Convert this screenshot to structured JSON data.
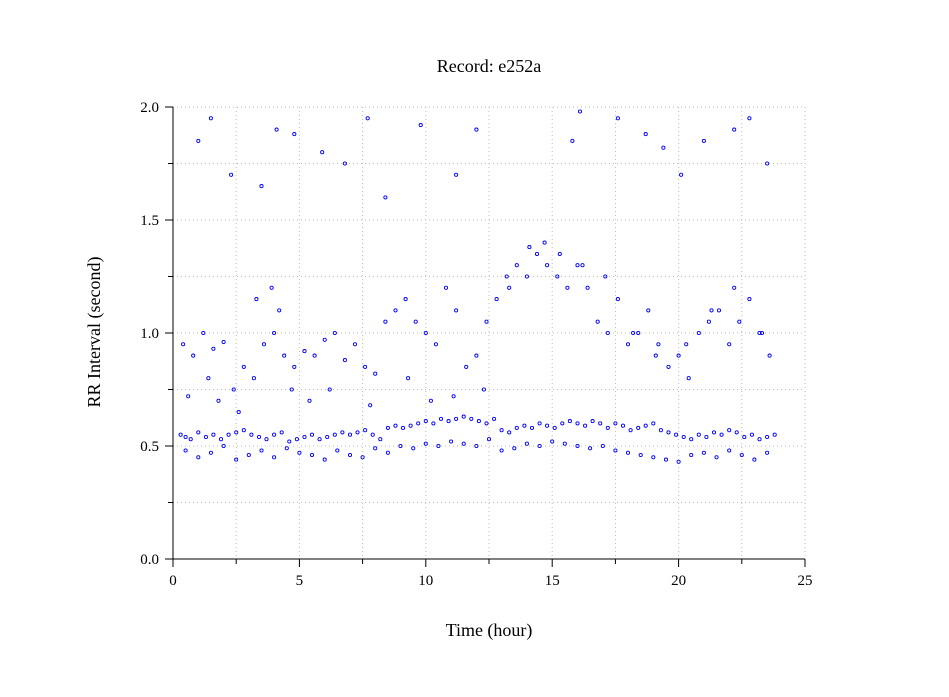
{
  "chart_data": {
    "type": "scatter",
    "title": "Record:  e252a",
    "xlabel": "Time (hour)",
    "ylabel": "RR Interval (second)",
    "xlim": [
      0,
      25
    ],
    "ylim": [
      0.0,
      2.0
    ],
    "x_ticks": [
      0,
      5,
      10,
      15,
      20,
      25
    ],
    "x_tick_labels": [
      "0",
      "5",
      "10",
      "15",
      "20",
      "25"
    ],
    "y_ticks": [
      0.0,
      0.5,
      1.0,
      1.5,
      2.0
    ],
    "y_tick_labels": [
      "0.0",
      "0.5",
      "1.0",
      "1.5",
      "2.0"
    ],
    "grid": true,
    "marker_color": "#0000ff",
    "series": [
      {
        "x": [
          0.3,
          0.5,
          0.7,
          1.0,
          1.3,
          1.6,
          1.9,
          2.2,
          2.5,
          2.8,
          3.1,
          3.4,
          3.7,
          4.0,
          4.3,
          4.6,
          4.9,
          5.2,
          5.5,
          5.8,
          6.1,
          6.4,
          6.7,
          7.0,
          7.3,
          7.6,
          7.9,
          8.2,
          8.5,
          8.8,
          9.1,
          9.4,
          9.7,
          10.0,
          10.3,
          10.6,
          10.9,
          11.2,
          11.5,
          11.8,
          12.1,
          12.4,
          12.7,
          13.0,
          13.3,
          13.6,
          13.9,
          14.2,
          14.5,
          14.8,
          15.1,
          15.4,
          15.7,
          16.0,
          16.3,
          16.6,
          16.9,
          17.2,
          17.5,
          17.8,
          18.1,
          18.4,
          18.7,
          19.0,
          19.3,
          19.6,
          19.9,
          20.2,
          20.5,
          20.8,
          21.1,
          21.4,
          21.7,
          22.0,
          22.3,
          22.6,
          22.9,
          23.2,
          23.5,
          23.8,
          0.4,
          0.8,
          1.2,
          1.6,
          2.0,
          2.4,
          2.8,
          3.2,
          3.6,
          4.0,
          4.4,
          4.8,
          5.2,
          5.6,
          6.0,
          6.4,
          6.8,
          7.2,
          7.6,
          8.0,
          8.4,
          8.8,
          9.2,
          9.6,
          10.0,
          10.4,
          10.8,
          11.2,
          11.6,
          12.0,
          12.4,
          12.8,
          13.2,
          13.6,
          14.0,
          14.4,
          14.8,
          15.2,
          15.6,
          16.0,
          16.4,
          16.8,
          17.2,
          17.6,
          18.0,
          18.4,
          18.8,
          19.2,
          19.6,
          20.0,
          20.4,
          20.8,
          21.2,
          21.6,
          22.0,
          22.4,
          22.8,
          23.2,
          23.6,
          0.5,
          1.0,
          1.5,
          2.0,
          2.5,
          3.0,
          3.5,
          4.0,
          4.5,
          5.0,
          5.5,
          6.0,
          6.5,
          7.0,
          7.5,
          8.0,
          8.5,
          9.0,
          9.5,
          10.0,
          10.5,
          11.0,
          11.5,
          12.0,
          12.5,
          13.0,
          13.5,
          14.0,
          14.5,
          15.0,
          15.5,
          16.0,
          16.5,
          17.0,
          17.5,
          18.0,
          18.5,
          19.0,
          19.5,
          20.0,
          20.5,
          21.0,
          21.5,
          22.0,
          22.5,
          23.0,
          23.5,
          0.6,
          1.4,
          1.8,
          2.6,
          3.3,
          3.9,
          4.2,
          4.7,
          5.4,
          6.2,
          7.8,
          9.3,
          10.2,
          11.1,
          12.3,
          13.3,
          14.1,
          14.7,
          15.3,
          16.2,
          17.1,
          18.2,
          19.1,
          20.3,
          21.3,
          22.2,
          23.3,
          1.0,
          1.5,
          2.3,
          3.5,
          4.1,
          4.8,
          5.9,
          6.8,
          7.7,
          8.4,
          9.8,
          11.2,
          12.0,
          15.8,
          16.1,
          17.6,
          18.7,
          19.4,
          20.1,
          21.0,
          22.2,
          22.8,
          23.5
        ],
        "y": [
          0.55,
          0.54,
          0.53,
          0.56,
          0.54,
          0.55,
          0.53,
          0.55,
          0.56,
          0.57,
          0.55,
          0.54,
          0.53,
          0.55,
          0.56,
          0.52,
          0.53,
          0.54,
          0.55,
          0.53,
          0.54,
          0.55,
          0.56,
          0.55,
          0.56,
          0.57,
          0.55,
          0.53,
          0.58,
          0.59,
          0.58,
          0.59,
          0.6,
          0.61,
          0.6,
          0.62,
          0.61,
          0.62,
          0.63,
          0.62,
          0.61,
          0.6,
          0.62,
          0.57,
          0.56,
          0.58,
          0.59,
          0.58,
          0.6,
          0.59,
          0.58,
          0.6,
          0.61,
          0.6,
          0.59,
          0.61,
          0.6,
          0.58,
          0.6,
          0.59,
          0.57,
          0.58,
          0.59,
          0.6,
          0.57,
          0.56,
          0.55,
          0.54,
          0.53,
          0.55,
          0.54,
          0.56,
          0.55,
          0.57,
          0.56,
          0.54,
          0.55,
          0.53,
          0.54,
          0.55,
          0.95,
          0.9,
          1.0,
          0.93,
          0.96,
          0.75,
          0.85,
          0.8,
          0.95,
          1.0,
          0.9,
          0.85,
          0.92,
          0.9,
          0.97,
          1.0,
          0.88,
          0.95,
          0.85,
          0.82,
          1.05,
          1.1,
          1.15,
          1.05,
          1.0,
          0.95,
          1.2,
          1.1,
          0.85,
          0.9,
          1.05,
          1.15,
          1.25,
          1.3,
          1.25,
          1.35,
          1.3,
          1.25,
          1.2,
          1.3,
          1.2,
          1.05,
          1.0,
          1.15,
          0.95,
          1.0,
          1.1,
          0.95,
          0.85,
          0.9,
          0.8,
          1.0,
          1.05,
          1.1,
          0.95,
          1.05,
          1.15,
          1.0,
          0.9,
          0.48,
          0.45,
          0.47,
          0.5,
          0.44,
          0.46,
          0.48,
          0.45,
          0.49,
          0.47,
          0.46,
          0.44,
          0.48,
          0.46,
          0.45,
          0.49,
          0.47,
          0.5,
          0.49,
          0.51,
          0.5,
          0.52,
          0.51,
          0.5,
          0.53,
          0.48,
          0.49,
          0.51,
          0.5,
          0.52,
          0.51,
          0.5,
          0.49,
          0.5,
          0.48,
          0.47,
          0.46,
          0.45,
          0.44,
          0.43,
          0.46,
          0.47,
          0.45,
          0.48,
          0.46,
          0.44,
          0.47,
          0.72,
          0.8,
          0.7,
          0.65,
          1.15,
          1.2,
          1.1,
          0.75,
          0.7,
          0.75,
          0.68,
          0.8,
          0.7,
          0.72,
          0.75,
          1.2,
          1.38,
          1.4,
          1.35,
          1.3,
          1.25,
          1.0,
          0.9,
          0.95,
          1.1,
          1.2,
          1.0,
          1.85,
          1.95,
          1.7,
          1.65,
          1.9,
          1.88,
          1.8,
          1.75,
          1.95,
          1.6,
          1.92,
          1.7,
          1.9,
          1.85,
          1.98,
          1.95,
          1.88,
          1.82,
          1.7,
          1.85,
          1.9,
          1.95,
          1.75
        ]
      }
    ]
  }
}
